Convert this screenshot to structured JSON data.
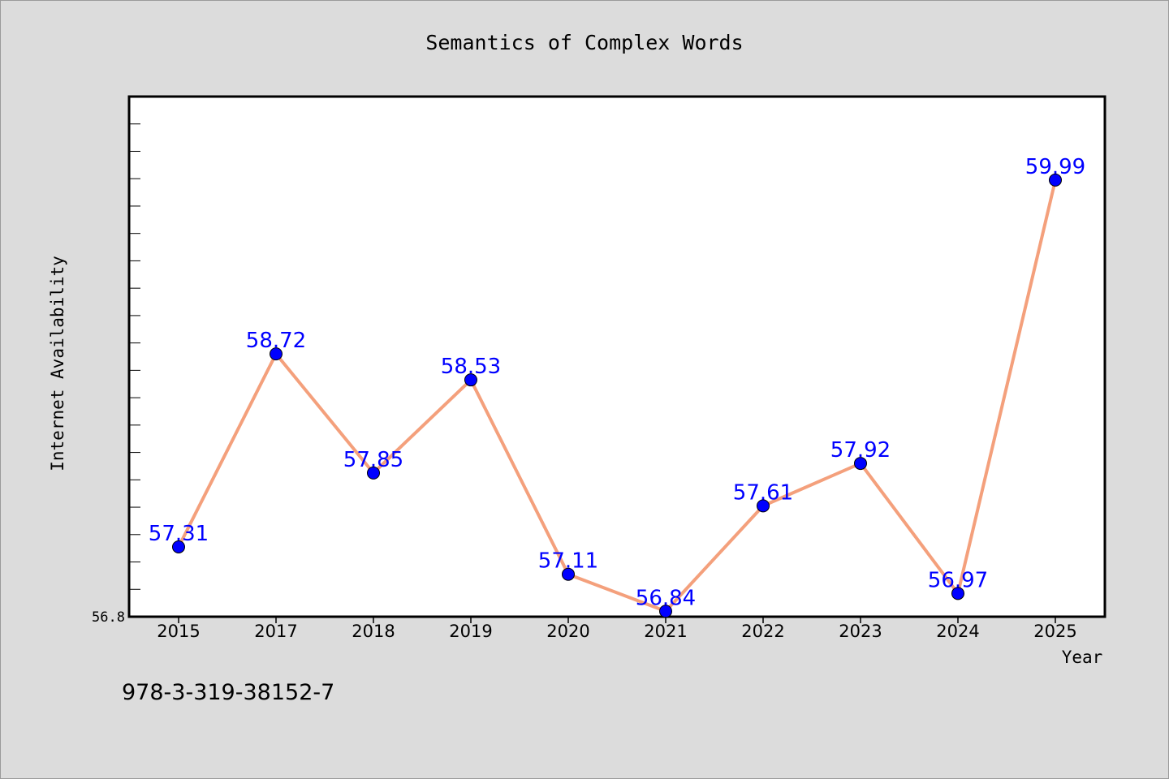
{
  "chart_data": {
    "type": "line",
    "title": "Semantics of Complex Words",
    "xlabel": "Year",
    "ylabel": "Internet Availability",
    "categories": [
      "2015",
      "2017",
      "2018",
      "2019",
      "2020",
      "2021",
      "2022",
      "2023",
      "2024",
      "2025"
    ],
    "values": [
      57.31,
      58.72,
      57.85,
      58.53,
      57.11,
      56.84,
      57.61,
      57.92,
      56.97,
      59.99
    ],
    "data_labels": [
      "57.31",
      "58.72",
      "57.85",
      "58.53",
      "57.11",
      "56.84",
      "57.61",
      "57.92",
      "56.97",
      "59.99"
    ],
    "y_tick_labels": [
      "56.8"
    ],
    "ylim": [
      56.8,
      60.6
    ],
    "grid": false,
    "legend": "none",
    "line_color": "#f4a07c",
    "marker_color": "#0000ff",
    "label_color": "#0000ff"
  },
  "footer_text": "978-3-319-38152-7"
}
